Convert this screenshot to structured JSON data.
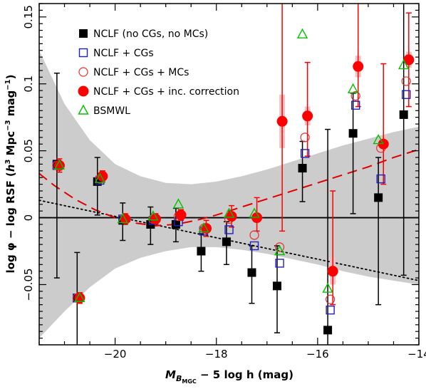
{
  "chart_data": {
    "type": "scatter",
    "title": "",
    "xlabel": "M_{B_MGC} − 5 log h (mag)",
    "xlabel_parts": {
      "main": "M",
      "sub1": "B",
      "sub2": "MGC",
      "tail": " − 5 log h (mag)"
    },
    "ylabel": "log φ − log RSF (h³ Mpc⁻³ mag⁻¹)",
    "ylabel_parts": {
      "pre": "log φ − log RSF (",
      "h": "h",
      "h_exp": "3",
      "mpc": " Mpc",
      "mpc_exp": "−3",
      "mag": " mag",
      "mag_exp": "−1",
      "post": ")"
    },
    "xlim": [
      -21.5,
      -14.0
    ],
    "ylim": [
      -0.095,
      0.16
    ],
    "x_ticks": [
      -20,
      -18,
      -16,
      -14
    ],
    "x_tick_labels": [
      "−20",
      "−18",
      "−16",
      "−14"
    ],
    "y_ticks": [
      -0.05,
      0,
      0.05,
      0.1,
      0.15
    ],
    "y_tick_labels": [
      "−0.05",
      "0",
      "0.05",
      "0.1",
      "0.15"
    ],
    "grid": false,
    "legend_position": "top-left",
    "shaded_band": {
      "x": [
        -21.5,
        -21.0,
        -20.5,
        -20.0,
        -19.5,
        -19.0,
        -18.5,
        -18.0,
        -17.5,
        -17.0,
        -16.5,
        -16.0,
        -15.5,
        -15.0,
        -14.5,
        -14.0
      ],
      "upper": [
        0.125,
        0.085,
        0.058,
        0.04,
        0.031,
        0.026,
        0.025,
        0.027,
        0.031,
        0.036,
        0.042,
        0.048,
        0.054,
        0.059,
        0.064,
        0.068
      ],
      "lower": [
        -0.09,
        -0.07,
        -0.052,
        -0.038,
        -0.03,
        -0.025,
        -0.022,
        -0.022,
        -0.024,
        -0.027,
        -0.031,
        -0.035,
        -0.04,
        -0.044,
        -0.047,
        -0.05
      ]
    },
    "reference_lines": [
      {
        "style": "solid",
        "color": "#000000",
        "x": [
          -21.5,
          -14.0
        ],
        "y": [
          0,
          0
        ]
      },
      {
        "style": "dotted",
        "color": "#000000",
        "x": [
          -21.5,
          -14.0
        ],
        "y": [
          0.013,
          -0.047
        ]
      },
      {
        "style": "dashed",
        "color": "#e00000",
        "x": [
          -21.5,
          -21.2,
          -20.8,
          -20.4,
          -20.0,
          -19.6,
          -19.2,
          -18.8,
          -18.4,
          -18.0,
          -17.5,
          -17.0,
          -16.5,
          -16.0,
          -15.5,
          -15.0,
          -14.5,
          -14.0
        ],
        "y": [
          0.033,
          0.024,
          0.014,
          0.006,
          0.0,
          -0.004,
          -0.006,
          -0.005,
          -0.002,
          0.002,
          0.008,
          0.014,
          0.02,
          0.026,
          0.032,
          0.038,
          0.045,
          0.051
        ]
      }
    ],
    "series": [
      {
        "name": "NCLF (no CGs, no MCs)",
        "marker": "filled-square",
        "color": "#000000",
        "x": [
          -21.15,
          -20.75,
          -20.35,
          -19.85,
          -19.3,
          -18.8,
          -18.3,
          -17.8,
          -17.3,
          -16.8,
          -16.3,
          -15.8,
          -15.3,
          -14.8,
          -14.3
        ],
        "y": [
          0.04,
          -0.06,
          0.027,
          -0.002,
          -0.005,
          -0.005,
          -0.025,
          -0.018,
          -0.041,
          -0.051,
          0.037,
          -0.084,
          0.063,
          0.015,
          0.077
        ],
        "err_low": [
          0.085,
          0.054,
          0.025,
          0.015,
          0.015,
          0.013,
          0.015,
          0.017,
          0.023,
          0.035,
          0.025,
          0.02,
          0.06,
          0.08,
          0.12
        ],
        "err_high": [
          0.068,
          0.034,
          0.018,
          0.013,
          0.013,
          0.012,
          0.013,
          0.015,
          0.02,
          0.03,
          0.02,
          0.15,
          0.03,
          0.03,
          0.1
        ]
      },
      {
        "name": "NCLF + CGs",
        "marker": "open-square",
        "color": "#2020c0",
        "x": [
          -21.15,
          -20.75,
          -20.3,
          -19.85,
          -19.25,
          -18.75,
          -18.25,
          -17.75,
          -17.25,
          -16.75,
          -16.25,
          -15.75,
          -15.25,
          -14.75,
          -14.25
        ],
        "y": [
          0.039,
          -0.06,
          0.028,
          -0.001,
          -0.002,
          -0.003,
          -0.01,
          -0.009,
          -0.021,
          -0.034,
          0.048,
          -0.069,
          0.084,
          0.029,
          0.092
        ]
      },
      {
        "name": "NCLF + CGs + MCs",
        "marker": "open-circle",
        "color": "#e03030",
        "x": [
          -21.15,
          -20.75,
          -20.3,
          -19.8,
          -19.25,
          -18.75,
          -18.25,
          -17.75,
          -17.25,
          -16.75,
          -16.25,
          -15.75,
          -15.25,
          -14.75,
          -14.25
        ],
        "y": [
          0.039,
          -0.06,
          0.029,
          -0.001,
          -0.001,
          0.001,
          -0.008,
          -0.001,
          -0.013,
          -0.022,
          0.06,
          -0.061,
          0.091,
          0.052,
          0.102
        ]
      },
      {
        "name": "NCLF + CGs + inc. correction",
        "marker": "filled-circle",
        "color": "#ff0000",
        "x": [
          -21.1,
          -20.7,
          -20.25,
          -19.8,
          -19.2,
          -18.7,
          -18.2,
          -17.7,
          -17.2,
          -16.7,
          -16.2,
          -15.7,
          -15.2,
          -14.7,
          -14.2
        ],
        "y": [
          0.039,
          -0.06,
          0.031,
          -0.001,
          -0.001,
          0.002,
          -0.008,
          0.001,
          0.0,
          0.072,
          0.076,
          -0.04,
          0.113,
          0.055,
          0.118
        ],
        "err_low": [
          0.005,
          0.004,
          0.004,
          0.004,
          0.004,
          0.004,
          0.006,
          0.008,
          0.01,
          0.082,
          0.03,
          0.025,
          0.03,
          0.03,
          0.035
        ],
        "err_high": [
          0.005,
          0.004,
          0.004,
          0.004,
          0.004,
          0.004,
          0.006,
          0.008,
          0.015,
          0.09,
          0.04,
          0.06,
          0.05,
          0.06,
          0.035
        ],
        "pink_bar_half": [
          0,
          0,
          0,
          0,
          0,
          0,
          0,
          0,
          0.003,
          0.02,
          0.007,
          0.01,
          0.008,
          0.006,
          0.006
        ]
      },
      {
        "name": "BSMWL",
        "marker": "open-triangle",
        "color": "#00c000",
        "x": [
          -21.1,
          -20.7,
          -20.3,
          -19.85,
          -19.25,
          -18.75,
          -18.25,
          -17.75,
          -17.25,
          -16.75,
          -16.3,
          -15.8,
          -15.3,
          -14.8,
          -14.3
        ],
        "y": [
          0.039,
          -0.06,
          0.029,
          -0.001,
          0.001,
          0.01,
          -0.008,
          0.003,
          0.003,
          -0.025,
          0.137,
          -0.053,
          0.096,
          0.058,
          0.114
        ]
      }
    ]
  }
}
